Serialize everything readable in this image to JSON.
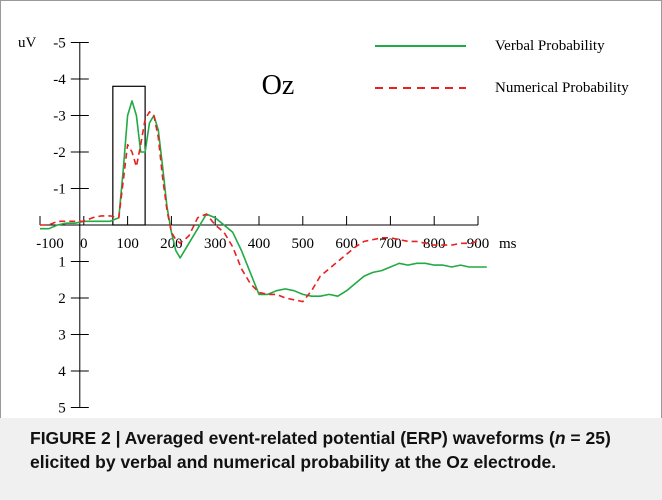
{
  "chart_data": {
    "type": "line",
    "title": "Oz",
    "xlabel": "ms",
    "ylabel": "uV",
    "xlim": [
      -100,
      900
    ],
    "ylim": [
      -5,
      5
    ],
    "y_inverted": true,
    "xticks": [
      -100,
      0,
      100,
      200,
      300,
      400,
      500,
      600,
      700,
      800,
      900
    ],
    "xtick_labels": [
      "-100",
      "0",
      "100",
      "200",
      "300",
      "400",
      "500",
      "600",
      "700",
      "800",
      "900"
    ],
    "yticks": [
      -5,
      -4,
      -3,
      -2,
      -1,
      1,
      2,
      3,
      4,
      5
    ],
    "ytick_labels": [
      "-5",
      "-4",
      "-3",
      "-2",
      "-1",
      "1",
      "2",
      "3",
      "4",
      "5"
    ],
    "legend_position": "top-right",
    "grid": false,
    "highlight_window": {
      "x": [
        80,
        140
      ],
      "y": [
        -3.8,
        0
      ]
    },
    "series": [
      {
        "name": "Verbal Probability",
        "color": "#22aa44",
        "style": "solid",
        "x": [
          -100,
          -80,
          -60,
          -40,
          -20,
          0,
          20,
          40,
          60,
          80,
          90,
          100,
          110,
          120,
          130,
          140,
          150,
          160,
          170,
          180,
          190,
          200,
          210,
          220,
          240,
          260,
          280,
          300,
          320,
          340,
          360,
          380,
          400,
          420,
          440,
          460,
          480,
          500,
          520,
          540,
          560,
          580,
          600,
          620,
          640,
          660,
          680,
          700,
          720,
          740,
          760,
          780,
          800,
          820,
          840,
          860,
          880,
          900,
          920
        ],
        "y": [
          0.1,
          0.1,
          0.0,
          -0.05,
          -0.05,
          -0.1,
          -0.1,
          -0.1,
          -0.1,
          -0.2,
          -1.5,
          -3.0,
          -3.4,
          -3.0,
          -2.0,
          -2.0,
          -2.8,
          -3.0,
          -2.6,
          -1.6,
          -0.5,
          0.2,
          0.7,
          0.9,
          0.5,
          0.1,
          -0.3,
          -0.2,
          0.0,
          0.2,
          0.7,
          1.3,
          1.9,
          1.9,
          1.8,
          1.75,
          1.8,
          1.9,
          1.95,
          1.95,
          1.9,
          1.95,
          1.8,
          1.6,
          1.4,
          1.3,
          1.25,
          1.15,
          1.05,
          1.1,
          1.05,
          1.05,
          1.1,
          1.1,
          1.15,
          1.1,
          1.15,
          1.15,
          1.15
        ]
      },
      {
        "name": "Numerical Probability",
        "color": "#e82020",
        "style": "dashed",
        "x": [
          -100,
          -80,
          -60,
          -40,
          -20,
          0,
          20,
          40,
          60,
          80,
          90,
          100,
          110,
          120,
          130,
          140,
          150,
          160,
          170,
          180,
          190,
          200,
          210,
          220,
          240,
          260,
          280,
          300,
          320,
          340,
          360,
          380,
          400,
          420,
          440,
          460,
          480,
          500,
          520,
          540,
          560,
          580,
          600,
          620,
          640,
          660,
          680,
          700,
          720,
          740,
          760,
          780,
          800,
          820,
          840,
          860,
          880,
          900
        ],
        "y": [
          0.0,
          0.0,
          -0.1,
          -0.1,
          -0.1,
          -0.1,
          -0.2,
          -0.25,
          -0.25,
          -0.2,
          -1.2,
          -2.2,
          -2.0,
          -1.6,
          -2.2,
          -2.9,
          -3.1,
          -3.0,
          -2.4,
          -1.3,
          -0.4,
          0.2,
          0.4,
          0.5,
          0.3,
          -0.2,
          -0.3,
          0.0,
          0.2,
          0.6,
          1.2,
          1.6,
          1.85,
          1.9,
          1.9,
          2.0,
          2.05,
          2.1,
          1.8,
          1.4,
          1.2,
          1.0,
          0.8,
          0.6,
          0.45,
          0.4,
          0.35,
          0.35,
          0.4,
          0.45,
          0.45,
          0.5,
          0.55,
          0.55,
          0.55,
          0.5,
          0.5,
          0.45
        ]
      }
    ]
  },
  "caption": {
    "prefix": "FIGURE 2 | Averaged event-related potential (ERP) waveforms (",
    "n_symbol": "n",
    "suffix": " = 25) elicited by verbal and numerical probability at the Oz electrode."
  }
}
